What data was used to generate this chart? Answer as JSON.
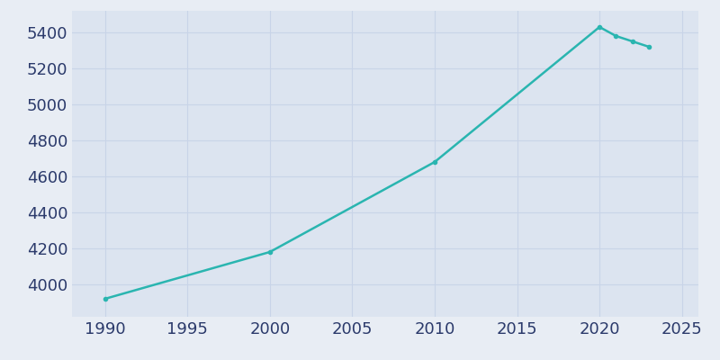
{
  "years": [
    1990,
    2000,
    2010,
    2020,
    2021,
    2022,
    2023
  ],
  "population": [
    3920,
    4180,
    4680,
    5430,
    5380,
    5350,
    5320
  ],
  "line_color": "#2ab5b0",
  "bg_color": "#e8edf4",
  "plot_bg_color": "#dce4f0",
  "xlim": [
    1988,
    2026
  ],
  "ylim": [
    3820,
    5520
  ],
  "xticks": [
    1990,
    1995,
    2000,
    2005,
    2010,
    2015,
    2020,
    2025
  ],
  "yticks": [
    4000,
    4200,
    4400,
    4600,
    4800,
    5000,
    5200,
    5400
  ],
  "tick_color": "#2b3a6b",
  "grid_color": "#c8d4e8",
  "line_width": 1.8,
  "marker_size": 3,
  "tick_fontsize": 13
}
